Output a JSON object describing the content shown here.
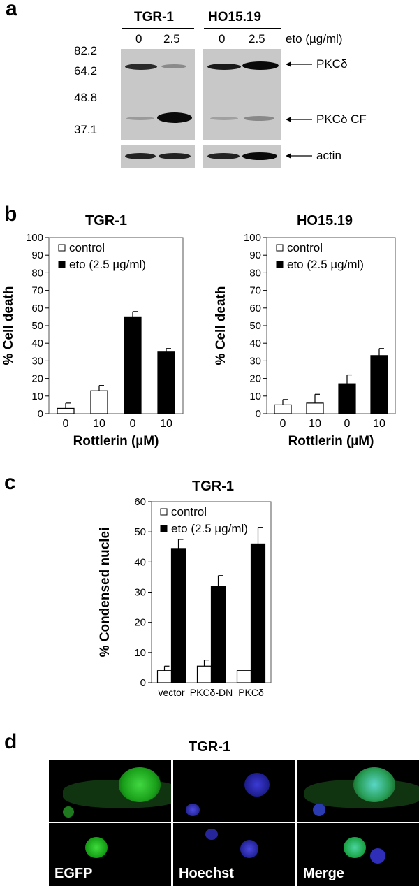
{
  "panel_a": {
    "letter": "a",
    "group_left": "TGR-1",
    "group_right": "HO15.19",
    "lane_labels": [
      "0",
      "2.5",
      "0",
      "2.5"
    ],
    "eto_label": "eto (µg/ml)",
    "markers": [
      "82.2",
      "64.2",
      "48.8",
      "37.1"
    ],
    "band_labels": [
      "PKCδ",
      "PKCδ CF",
      "actin"
    ]
  },
  "panel_b": {
    "letter": "b"
  },
  "panel_c": {
    "letter": "c"
  },
  "panel_d": {
    "letter": "d",
    "title": "TGR-1",
    "column_labels": [
      "EGFP",
      "Hoechst",
      "Merge"
    ]
  },
  "chart_data": [
    {
      "id": "b-left",
      "type": "bar",
      "title": "TGR-1",
      "ylabel": "% Cell death",
      "xlabel": "Rottlerin (µM)",
      "categories": [
        "0",
        "10",
        "0",
        "10"
      ],
      "ylim": [
        0,
        100
      ],
      "yticks": [
        0,
        10,
        20,
        30,
        40,
        50,
        60,
        70,
        80,
        90,
        100
      ],
      "series": [
        {
          "name": "control",
          "fill": "#ffffff",
          "values": [
            3,
            13,
            null,
            null
          ],
          "errors": [
            3,
            3,
            null,
            null
          ]
        },
        {
          "name": "eto (2.5 µg/ml)",
          "fill": "#000000",
          "values": [
            null,
            null,
            55,
            35
          ],
          "errors": [
            null,
            null,
            3,
            2
          ]
        }
      ],
      "legend": "top-left"
    },
    {
      "id": "b-right",
      "type": "bar",
      "title": "HO15.19",
      "ylabel": "% Cell death",
      "xlabel": "Rottlerin (µM)",
      "categories": [
        "0",
        "10",
        "0",
        "10"
      ],
      "ylim": [
        0,
        100
      ],
      "yticks": [
        0,
        10,
        20,
        30,
        40,
        50,
        60,
        70,
        80,
        90,
        100
      ],
      "series": [
        {
          "name": "control",
          "fill": "#ffffff",
          "values": [
            5,
            6,
            null,
            null
          ],
          "errors": [
            3,
            5,
            null,
            null
          ]
        },
        {
          "name": "eto (2.5 µg/ml)",
          "fill": "#000000",
          "values": [
            null,
            null,
            17,
            33
          ],
          "errors": [
            null,
            null,
            5,
            4
          ]
        }
      ],
      "legend": "top-left"
    },
    {
      "id": "c",
      "type": "bar",
      "title": "TGR-1",
      "ylabel": "% Condensed nuclei",
      "xlabel": "",
      "categories": [
        "vector",
        "PKCδ-DN",
        "PKCδ"
      ],
      "ylim": [
        0,
        60
      ],
      "yticks": [
        0,
        10,
        20,
        30,
        40,
        50,
        60
      ],
      "series": [
        {
          "name": "control",
          "fill": "#ffffff",
          "values": [
            4,
            5.5,
            4
          ],
          "errors": [
            1.5,
            2,
            0
          ]
        },
        {
          "name": "eto (2.5 µg/ml)",
          "fill": "#000000",
          "values": [
            44.5,
            32,
            46
          ],
          "errors": [
            3,
            3.5,
            5.5
          ]
        }
      ],
      "legend": "top-left"
    }
  ]
}
